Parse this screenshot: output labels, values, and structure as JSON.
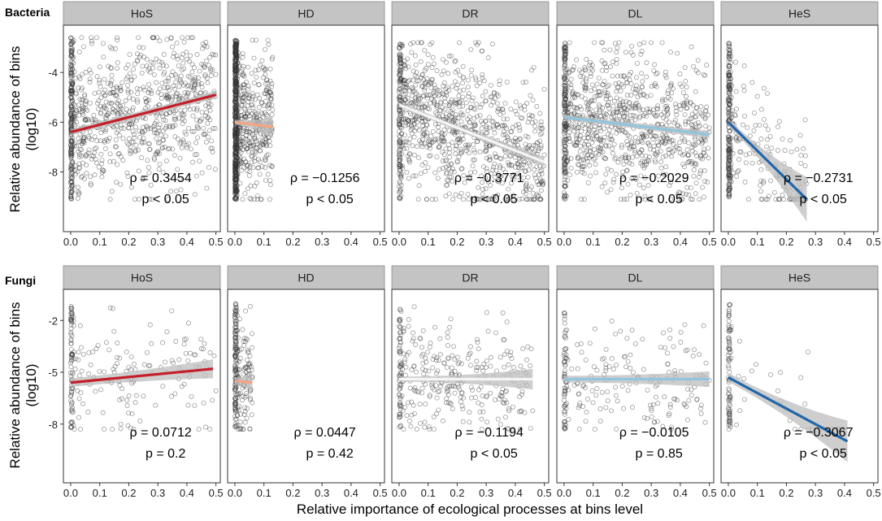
{
  "chart_data": {
    "type": "scatter",
    "x_label": "Relative importance of ecological processes at bins level",
    "y_label_line1": "Relative abundance of bins",
    "y_label_line2": "(log10)",
    "x_ticks": [
      0.0,
      0.1,
      0.2,
      0.3,
      0.4,
      0.5
    ],
    "x_tick_labels": [
      "0.0",
      "0.1",
      "0.2",
      "0.3",
      "0.4",
      "0.5"
    ],
    "panels": [
      "HoS",
      "HD",
      "DR",
      "DL",
      "HeS"
    ],
    "line_colors": {
      "HoS": "#c41e2a",
      "HD": "#f4a582",
      "DR": "#f5f5f5",
      "DL": "#92c5de",
      "HeS": "#2166ac"
    },
    "band_color": "#bdbdbd",
    "rows": [
      {
        "title": "Bacteria",
        "xlim": [
          -0.025,
          0.515
        ],
        "ylim": [
          -10.4,
          -2.1
        ],
        "y_ticks": [
          -4,
          -6,
          -8
        ],
        "y_tick_labels": [
          "-4",
          "-6",
          "-8"
        ],
        "scatter": [
          {
            "panel": "HoS",
            "n": 950,
            "x_max": 0.5,
            "y_min": -9.1,
            "y_max": -2.6,
            "y_trend": [
              -6.4,
              -4.9
            ],
            "zero_n": 200
          },
          {
            "panel": "HD",
            "n": 900,
            "x_max": 0.13,
            "y_min": -9.1,
            "y_max": -2.7,
            "y_trend": [
              -6.0,
              -6.2
            ],
            "zero_n": 500
          },
          {
            "panel": "DR",
            "n": 1000,
            "x_max": 0.5,
            "y_min": -9.1,
            "y_max": -2.8,
            "y_trend": [
              -5.3,
              -7.6
            ],
            "zero_n": 120
          },
          {
            "panel": "DL",
            "n": 1000,
            "x_max": 0.5,
            "y_min": -9.1,
            "y_max": -2.8,
            "y_trend": [
              -5.8,
              -6.5
            ],
            "zero_n": 150
          },
          {
            "panel": "HeS",
            "n": 350,
            "x_max": 0.27,
            "y_min": -9.1,
            "y_max": -2.8,
            "y_trend": [
              -6.0,
              -9.1
            ],
            "zero_n": 200
          }
        ],
        "fits": [
          {
            "panel": "HoS",
            "x0": 0.0,
            "x1": 0.5,
            "y0": -6.4,
            "y1": -4.9,
            "se": [
              0.12,
              0.15
            ]
          },
          {
            "panel": "HD",
            "x0": 0.0,
            "x1": 0.13,
            "y0": -6.0,
            "y1": -6.2,
            "se": [
              0.1,
              0.45
            ]
          },
          {
            "panel": "DR",
            "x0": 0.0,
            "x1": 0.5,
            "y0": -5.3,
            "y1": -7.6,
            "se": [
              0.1,
              0.2
            ]
          },
          {
            "panel": "DL",
            "x0": 0.0,
            "x1": 0.5,
            "y0": -5.8,
            "y1": -6.5,
            "se": [
              0.1,
              0.15
            ]
          },
          {
            "panel": "HeS",
            "x0": 0.0,
            "x1": 0.27,
            "y0": -6.0,
            "y1": -9.1,
            "se": [
              0.15,
              0.9
            ]
          }
        ],
        "stats": [
          {
            "panel": "HoS",
            "rho": "ρ = 0.3454",
            "p": "p < 0.05"
          },
          {
            "panel": "HD",
            "rho": "ρ = −0.1256",
            "p": "p < 0.05"
          },
          {
            "panel": "DR",
            "rho": "ρ = −0.3771",
            "p": "p < 0.05"
          },
          {
            "panel": "DL",
            "rho": "ρ = −0.2029",
            "p": "p < 0.05"
          },
          {
            "panel": "HeS",
            "rho": "ρ = −0.2731",
            "p": "p < 0.05"
          }
        ]
      },
      {
        "title": "Fungi",
        "xlim": [
          -0.025,
          0.515
        ],
        "ylim": [
          -11.4,
          -0.2
        ],
        "y_ticks": [
          -2,
          -5,
          -8
        ],
        "y_tick_labels": [
          "-2",
          "-5",
          "-8"
        ],
        "scatter": [
          {
            "panel": "HoS",
            "n": 220,
            "x_max": 0.5,
            "y_min": -8.3,
            "y_max": -1.0,
            "y_trend": [
              -5.6,
              -4.8
            ],
            "zero_n": 70
          },
          {
            "panel": "HD",
            "n": 230,
            "x_max": 0.06,
            "y_min": -8.3,
            "y_max": -1.0,
            "y_trend": [
              -5.5,
              -5.6
            ],
            "zero_n": 120
          },
          {
            "panel": "DR",
            "n": 340,
            "x_max": 0.46,
            "y_min": -8.3,
            "y_max": -1.2,
            "y_trend": [
              -5.4,
              -5.4
            ],
            "zero_n": 60
          },
          {
            "panel": "DL",
            "n": 230,
            "x_max": 0.5,
            "y_min": -8.3,
            "y_max": -1.5,
            "y_trend": [
              -5.4,
              -5.4
            ],
            "zero_n": 60
          },
          {
            "panel": "HeS",
            "n": 110,
            "x_max": 0.41,
            "y_min": -8.3,
            "y_max": -1.0,
            "y_trend": [
              -5.3,
              -9.0
            ],
            "zero_n": 80
          }
        ],
        "fits": [
          {
            "panel": "HoS",
            "x0": 0.0,
            "x1": 0.49,
            "y0": -5.6,
            "y1": -4.8,
            "se": [
              0.25,
              0.55
            ]
          },
          {
            "panel": "HD",
            "x0": 0.0,
            "x1": 0.06,
            "y0": -5.5,
            "y1": -5.6,
            "se": [
              0.2,
              0.5
            ]
          },
          {
            "panel": "DR",
            "x0": 0.0,
            "x1": 0.46,
            "y0": -5.4,
            "y1": -5.4,
            "se": [
              0.15,
              0.6
            ]
          },
          {
            "panel": "DL",
            "x0": 0.0,
            "x1": 0.5,
            "y0": -5.4,
            "y1": -5.4,
            "se": [
              0.2,
              0.45
            ]
          },
          {
            "panel": "HeS",
            "x0": 0.0,
            "x1": 0.41,
            "y0": -5.3,
            "y1": -9.0,
            "se": [
              0.25,
              1.2
            ]
          }
        ],
        "stats": [
          {
            "panel": "HoS",
            "rho": "ρ = 0.0712",
            "p": "p = 0.2"
          },
          {
            "panel": "HD",
            "rho": "ρ = 0.0447",
            "p": "p = 0.42"
          },
          {
            "panel": "DR",
            "rho": "ρ = −0.1194",
            "p": "p < 0.05"
          },
          {
            "panel": "DL",
            "rho": "ρ = −0.0105",
            "p": "p = 0.85"
          },
          {
            "panel": "HeS",
            "rho": "ρ = −0.3067",
            "p": "p < 0.05"
          }
        ]
      }
    ]
  }
}
